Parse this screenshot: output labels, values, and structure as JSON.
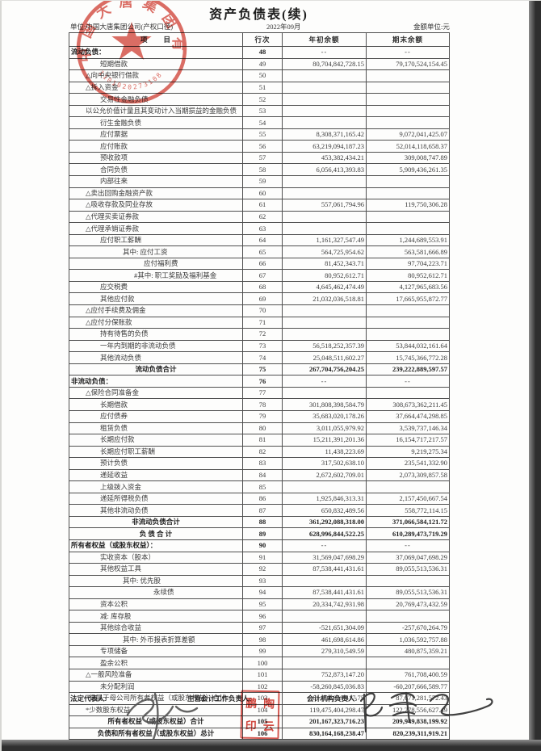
{
  "page": {
    "title": "资产负债表(续)",
    "unit_line": "单位:中国大唐集团公司(产权口径)",
    "period": "2022年09月",
    "currency_note": "金额单位:元"
  },
  "table": {
    "headers": {
      "item": "项　　目",
      "line_no": "行次",
      "beginning": "年初余额",
      "ending": "期末余额"
    },
    "rows": [
      {
        "label": "流动负债：",
        "line": "48",
        "begin": "--",
        "end": "--",
        "indent": 2,
        "bold": true,
        "center": false
      },
      {
        "label": "短期借款",
        "line": "49",
        "begin": "80,704,842,728.15",
        "end": "79,170,524,154.45",
        "indent": 38
      },
      {
        "label": "△向中央银行借款",
        "line": "50",
        "begin": "",
        "end": "",
        "indent": 20
      },
      {
        "label": "△拆入资金",
        "line": "51",
        "begin": "",
        "end": "",
        "indent": 20
      },
      {
        "label": "交易性金融负债",
        "line": "52",
        "begin": "",
        "end": "",
        "indent": 38
      },
      {
        "label": "以公允价值计量且其变动计入当期损益的金融负债",
        "line": "53",
        "begin": "",
        "end": "",
        "indent": 20
      },
      {
        "label": "衍生金融负债",
        "line": "54",
        "begin": "",
        "end": "",
        "indent": 38
      },
      {
        "label": "应付票据",
        "line": "55",
        "begin": "8,308,371,165.42",
        "end": "9,072,041,425.07",
        "indent": 38
      },
      {
        "label": "应付账款",
        "line": "56",
        "begin": "63,219,094,187.23",
        "end": "52,014,118,658.37",
        "indent": 38
      },
      {
        "label": "预收款项",
        "line": "57",
        "begin": "453,382,434.21",
        "end": "309,008,747.89",
        "indent": 38
      },
      {
        "label": "合同负债",
        "line": "58",
        "begin": "6,056,413,393.83",
        "end": "5,909,436,261.35",
        "indent": 38
      },
      {
        "label": "内部往来",
        "line": "59",
        "begin": "",
        "end": "",
        "indent": 38
      },
      {
        "label": "△卖出回购金融资产款",
        "line": "60",
        "begin": "",
        "end": "",
        "indent": 20
      },
      {
        "label": "△吸收存款及同业存放",
        "line": "61",
        "begin": "557,061,794.96",
        "end": "119,750,306.28",
        "indent": 20
      },
      {
        "label": "△代理买卖证券款",
        "line": "62",
        "begin": "",
        "end": "",
        "indent": 20
      },
      {
        "label": "△代理承销证券款",
        "line": "63",
        "begin": "",
        "end": "",
        "indent": 20
      },
      {
        "label": "应付职工薪酬",
        "line": "64",
        "begin": "1,161,327,547.49",
        "end": "1,244,689,553.91",
        "indent": 38
      },
      {
        "label": "其中: 应付工资",
        "line": "65",
        "begin": "564,725,954.62",
        "end": "563,581,666.89",
        "indent": 66
      },
      {
        "label": "应付福利费",
        "line": "66",
        "begin": "81,452,343.71",
        "end": "97,704,223.71",
        "indent": 92
      },
      {
        "label": "#其中: 职工奖励及福利基金",
        "line": "67",
        "begin": "80,952,612.71",
        "end": "80,952,612.71",
        "indent": 80
      },
      {
        "label": "应交税费",
        "line": "68",
        "begin": "4,645,462,474.49",
        "end": "4,127,965,683.56",
        "indent": 38
      },
      {
        "label": "其他应付款",
        "line": "69",
        "begin": "21,032,036,518.81",
        "end": "17,665,955,872.77",
        "indent": 38
      },
      {
        "label": "△应付手续费及佣金",
        "line": "70",
        "begin": "",
        "end": "",
        "indent": 20
      },
      {
        "label": "△应付分保账款",
        "line": "71",
        "begin": "",
        "end": "",
        "indent": 20
      },
      {
        "label": "持有待售的负债",
        "line": "72",
        "begin": "",
        "end": "",
        "indent": 38
      },
      {
        "label": "一年内到期的非流动负债",
        "line": "73",
        "begin": "56,518,252,357.39",
        "end": "53,844,032,161.64",
        "indent": 38
      },
      {
        "label": "其他流动负债",
        "line": "74",
        "begin": "25,048,511,602.27",
        "end": "15,745,366,772.28",
        "indent": 38
      },
      {
        "label": "流动负债合计",
        "line": "75",
        "begin": "267,704,756,204.25",
        "end": "239,222,889,597.57",
        "bold": true,
        "center": true
      },
      {
        "label": "非流动负债：",
        "line": "76",
        "begin": "--",
        "end": "--",
        "indent": 2,
        "bold": true
      },
      {
        "label": "△保险合同准备金",
        "line": "77",
        "begin": "",
        "end": "",
        "indent": 20
      },
      {
        "label": "长期借款",
        "line": "78",
        "begin": "301,808,398,584.79",
        "end": "308,673,362,211.45",
        "indent": 38
      },
      {
        "label": "应付债券",
        "line": "79",
        "begin": "35,683,020,178.26",
        "end": "37,664,474,298.85",
        "indent": 38
      },
      {
        "label": "租赁负债",
        "line": "80",
        "begin": "3,011,055,979.92",
        "end": "3,539,737,146.34",
        "indent": 38
      },
      {
        "label": "长期应付款",
        "line": "81",
        "begin": "15,211,391,201.36",
        "end": "16,154,717,217.57",
        "indent": 38
      },
      {
        "label": "长期应付职工薪酬",
        "line": "82",
        "begin": "11,438,223.69",
        "end": "9,219,275.34",
        "indent": 38
      },
      {
        "label": "预计负债",
        "line": "83",
        "begin": "317,502,638.10",
        "end": "235,541,332.90",
        "indent": 38
      },
      {
        "label": "递延收益",
        "line": "84",
        "begin": "2,672,602,709.01",
        "end": "2,073,309,857.58",
        "indent": 38
      },
      {
        "label": "上级拨入资金",
        "line": "85",
        "begin": "",
        "end": "",
        "indent": 38
      },
      {
        "label": "递延所得税负债",
        "line": "86",
        "begin": "1,925,846,313.31",
        "end": "2,157,450,667.54",
        "indent": 38
      },
      {
        "label": "其他非流动负债",
        "line": "87",
        "begin": "650,832,489.56",
        "end": "558,772,114.15",
        "indent": 38
      },
      {
        "label": "非流动负债合计",
        "line": "88",
        "begin": "361,292,088,318.00",
        "end": "371,066,584,121.72",
        "bold": true,
        "center": true
      },
      {
        "label": "负 债 合 计",
        "line": "89",
        "begin": "628,996,844,522.25",
        "end": "610,289,473,719.29",
        "bold": true,
        "center": true
      },
      {
        "label": "所有者权益（或股东权益）：",
        "line": "90",
        "begin": "--",
        "end": "--",
        "indent": 2,
        "bold": true
      },
      {
        "label": "实收资本（股本）",
        "line": "91",
        "begin": "31,569,047,698.29",
        "end": "37,069,047,698.29",
        "indent": 38
      },
      {
        "label": "其他权益工具",
        "line": "92",
        "begin": "87,538,441,431.61",
        "end": "89,055,513,536.31",
        "indent": 38
      },
      {
        "label": "其中: 优先股",
        "line": "93",
        "begin": "",
        "end": "",
        "indent": 66
      },
      {
        "label": "永续债",
        "line": "94",
        "begin": "87,538,441,431.61",
        "end": "89,055,513,536.31",
        "indent": 104
      },
      {
        "label": "资本公积",
        "line": "95",
        "begin": "20,334,742,931.98",
        "end": "20,769,473,432.59",
        "indent": 38
      },
      {
        "label": "减: 库存股",
        "line": "96",
        "begin": "",
        "end": "",
        "indent": 38
      },
      {
        "label": "其他综合收益",
        "line": "97",
        "begin": "-521,651,304.09",
        "end": "-257,670,264.79",
        "indent": 38
      },
      {
        "label": "其中: 外币报表折算差额",
        "line": "98",
        "begin": "461,698,614.86",
        "end": "1,036,592,757.88",
        "indent": 66
      },
      {
        "label": "专项储备",
        "line": "99",
        "begin": "279,310,549.59",
        "end": "480,875,359.21",
        "indent": 38
      },
      {
        "label": "盈余公积",
        "line": "100",
        "begin": "",
        "end": "",
        "indent": 38
      },
      {
        "label": "△一般风险准备",
        "line": "101",
        "begin": "752,873,147.20",
        "end": "761,708,400.59",
        "indent": 20
      },
      {
        "label": "未分配利润",
        "line": "102",
        "begin": "-58,260,845,036.83",
        "end": "-60,207,666,589.77",
        "indent": 38
      },
      {
        "label": "归属于母公司所有者权益（或股东权益）合计",
        "line": "103",
        "begin": "81,691,919,417.75",
        "end": "87,671,281,572.43",
        "indent": 24
      },
      {
        "label": "*少数股东权益",
        "line": "104",
        "begin": "119,475,404,298.47",
        "end": "122,278,556,627.49",
        "indent": 20
      },
      {
        "label": "所有者权益（或股东权益）合计",
        "line": "105",
        "begin": "201,167,323,716.23",
        "end": "209,949,838,199.92",
        "bold": true,
        "center": true
      },
      {
        "label": "负债和所有者权益（或股东权益）总计",
        "line": "106",
        "begin": "830,164,168,238.47",
        "end": "820,239,311,919.21",
        "bold": true,
        "center": true
      }
    ]
  },
  "footer": {
    "legal_rep_label": "法定代表人:",
    "chief_accountant_label": "主管会计工作负责人:",
    "accounting_head_label": "会计机构负责人:",
    "accountant_seal_chars": [
      "鹏",
      "陶",
      "印",
      "云"
    ],
    "accountant_seal_text": "陶云鹏印"
  },
  "stamps": {
    "company_seal_text": "中国大唐集团有限公司",
    "company_seal_code": "1101020273108"
  },
  "colors": {
    "seal_red": "#d4493e",
    "table_border": "#4f4f4f",
    "ink": "#3a3a3a"
  }
}
